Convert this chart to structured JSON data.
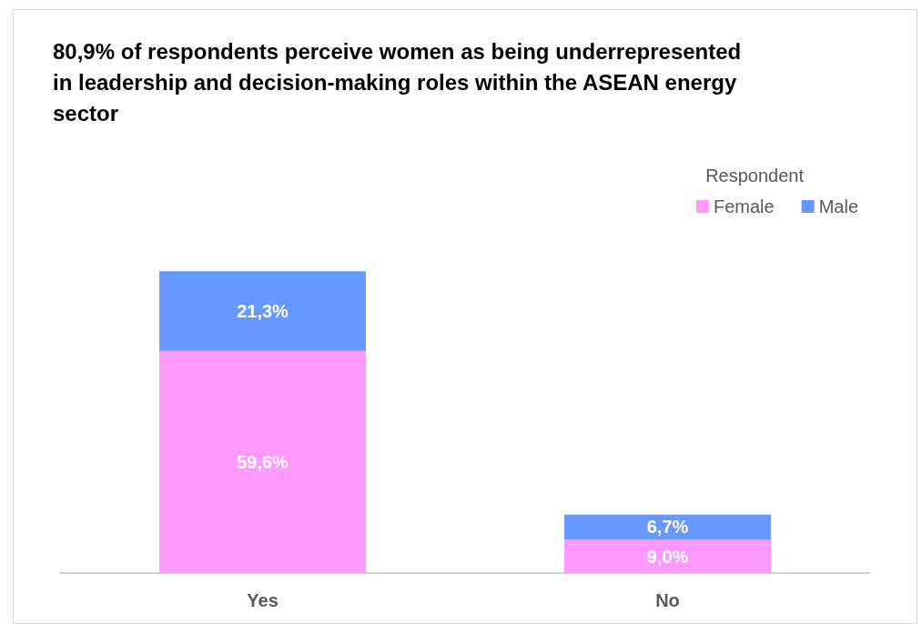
{
  "chart_data": {
    "type": "bar",
    "title": "80,9% of respondents perceive women as being underrepresented in leadership and decision-making roles within the ASEAN energy sector",
    "categories": [
      "Yes",
      "No"
    ],
    "stacked": true,
    "legend": "top right",
    "legend_title": "Respondent",
    "series": [
      {
        "name": "Female",
        "color": "#ff99ff",
        "values": [
          59.6,
          9.0
        ],
        "value_labels": [
          "59,6%",
          "9,0%"
        ]
      },
      {
        "name": "Male",
        "color": "#6699ff",
        "values": [
          21.3,
          6.7
        ],
        "value_labels": [
          "21,3%",
          "6,7%"
        ]
      }
    ]
  }
}
